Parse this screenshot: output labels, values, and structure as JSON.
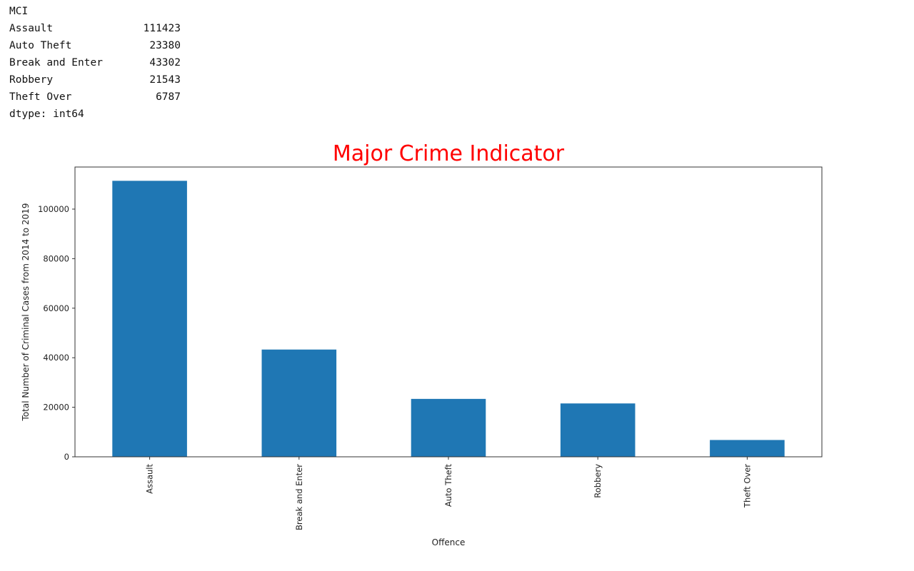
{
  "output": {
    "header": "MCI",
    "series_rows": [
      {
        "name": "Assault",
        "value": "111423"
      },
      {
        "name": "Auto Theft",
        "value": "23380"
      },
      {
        "name": "Break and Enter",
        "value": "43302"
      },
      {
        "name": "Robbery",
        "value": "21543"
      },
      {
        "name": "Theft Over",
        "value": "6787"
      }
    ],
    "dtype": "dtype: int64"
  },
  "colors": {
    "bar": "#1f77b4",
    "title": "#ff0000",
    "axis": "#333333"
  },
  "chart_data": {
    "type": "bar",
    "title": "Major Crime Indicator",
    "xlabel": "Offence",
    "ylabel": "Total Number of Criminal Cases from 2014 to 2019",
    "categories": [
      "Assault",
      "Break and Enter",
      "Auto Theft",
      "Robbery",
      "Theft Over"
    ],
    "values": [
      111423,
      43302,
      23380,
      21543,
      6787
    ],
    "ylim": [
      0,
      116994
    ],
    "yticks": [
      0,
      20000,
      40000,
      60000,
      80000,
      100000
    ],
    "ytick_labels": [
      "0",
      "20000",
      "40000",
      "60000",
      "80000",
      "100000"
    ],
    "grid": false,
    "legend": "none"
  }
}
